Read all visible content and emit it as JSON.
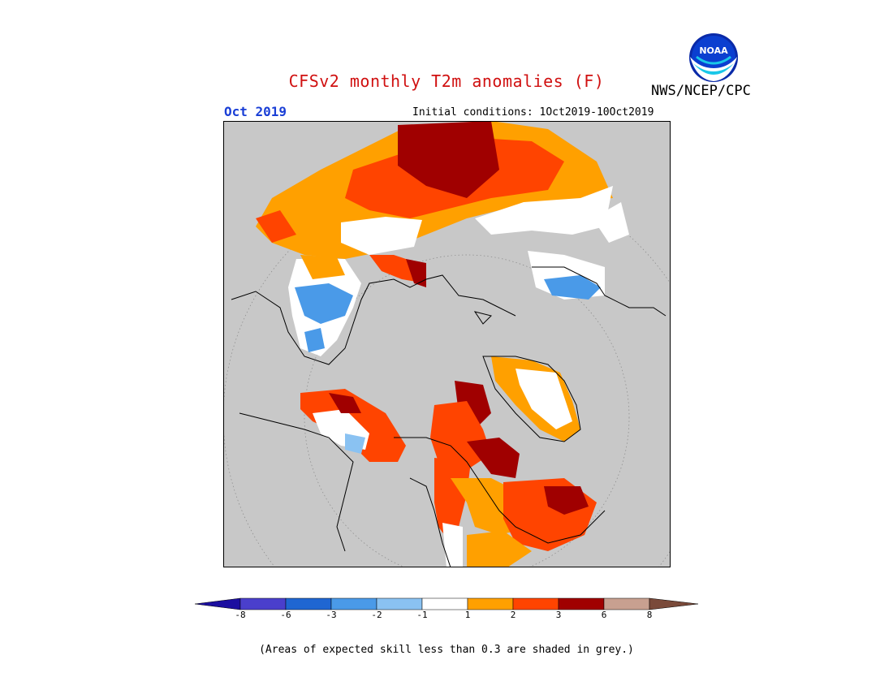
{
  "header": {
    "title": "CFSv2 monthly T2m anomalies (F)",
    "period": "Oct 2019",
    "initial_conditions": "Initial conditions: 1Oct2019-10Oct2019",
    "agency": "NWS/NCEP/CPC",
    "logo_text": "NOAA"
  },
  "map": {
    "projection": "north polar stereographic",
    "background_color": "#c8c8c8"
  },
  "legend": {
    "ticks": [
      "-8",
      "-6",
      "-3",
      "-2",
      "-1",
      "1",
      "2",
      "3",
      "6",
      "8"
    ],
    "colors": [
      "#1c0fa0",
      "#4a3fcc",
      "#1f66d2",
      "#4a9ae8",
      "#8ac2f2",
      "#ffffff",
      "#ffa000",
      "#ff4400",
      "#a00000",
      "#c8a090",
      "#7a4a3a"
    ]
  },
  "footer": {
    "note": "(Areas of expected skill less than 0.3 are shaded in grey.)"
  }
}
